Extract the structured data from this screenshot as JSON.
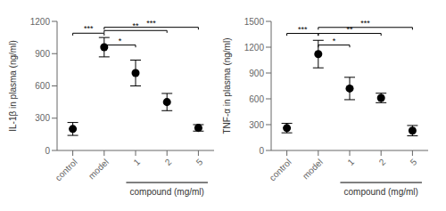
{
  "chart_data": [
    {
      "type": "scatter",
      "ylabel": "IL-1β in plasma (ng/ml)",
      "xlabel": "compound (mg/ml)",
      "categories": [
        "control",
        "model",
        "1",
        "2",
        "5"
      ],
      "values": [
        200,
        960,
        720,
        450,
        210
      ],
      "errors": [
        60,
        90,
        120,
        80,
        30
      ],
      "color": "#000000",
      "ylim": [
        0,
        1200
      ],
      "yticks": [
        0,
        300,
        600,
        900,
        1200
      ],
      "annotations": [
        {
          "from": "control",
          "to": "model",
          "y": 1090,
          "label": "***"
        },
        {
          "from": "model",
          "to": "1",
          "y": 980,
          "label": "*"
        },
        {
          "from": "model",
          "to": "2",
          "y": 1115,
          "label": "**"
        },
        {
          "from": "model",
          "to": "5",
          "y": 1145,
          "label": "***"
        }
      ]
    },
    {
      "type": "scatter",
      "ylabel": "TNF-α in plasma (ng/ml)",
      "xlabel": "compound (mg/ml)",
      "categories": [
        "control",
        "model",
        "1",
        "2",
        "5"
      ],
      "values": [
        260,
        1120,
        720,
        610,
        230
      ],
      "errors": [
        55,
        160,
        130,
        55,
        60
      ],
      "color": "#000000",
      "ylim": [
        0,
        1500
      ],
      "yticks": [
        0,
        300,
        600,
        900,
        1200,
        1500
      ],
      "annotations": [
        {
          "from": "control",
          "to": "model",
          "y": 1360,
          "label": "***"
        },
        {
          "from": "model",
          "to": "1",
          "y": 1225,
          "label": "*"
        },
        {
          "from": "model",
          "to": "2",
          "y": 1360,
          "label": "**"
        },
        {
          "from": "model",
          "to": "5",
          "y": 1430,
          "label": "***"
        }
      ]
    }
  ]
}
